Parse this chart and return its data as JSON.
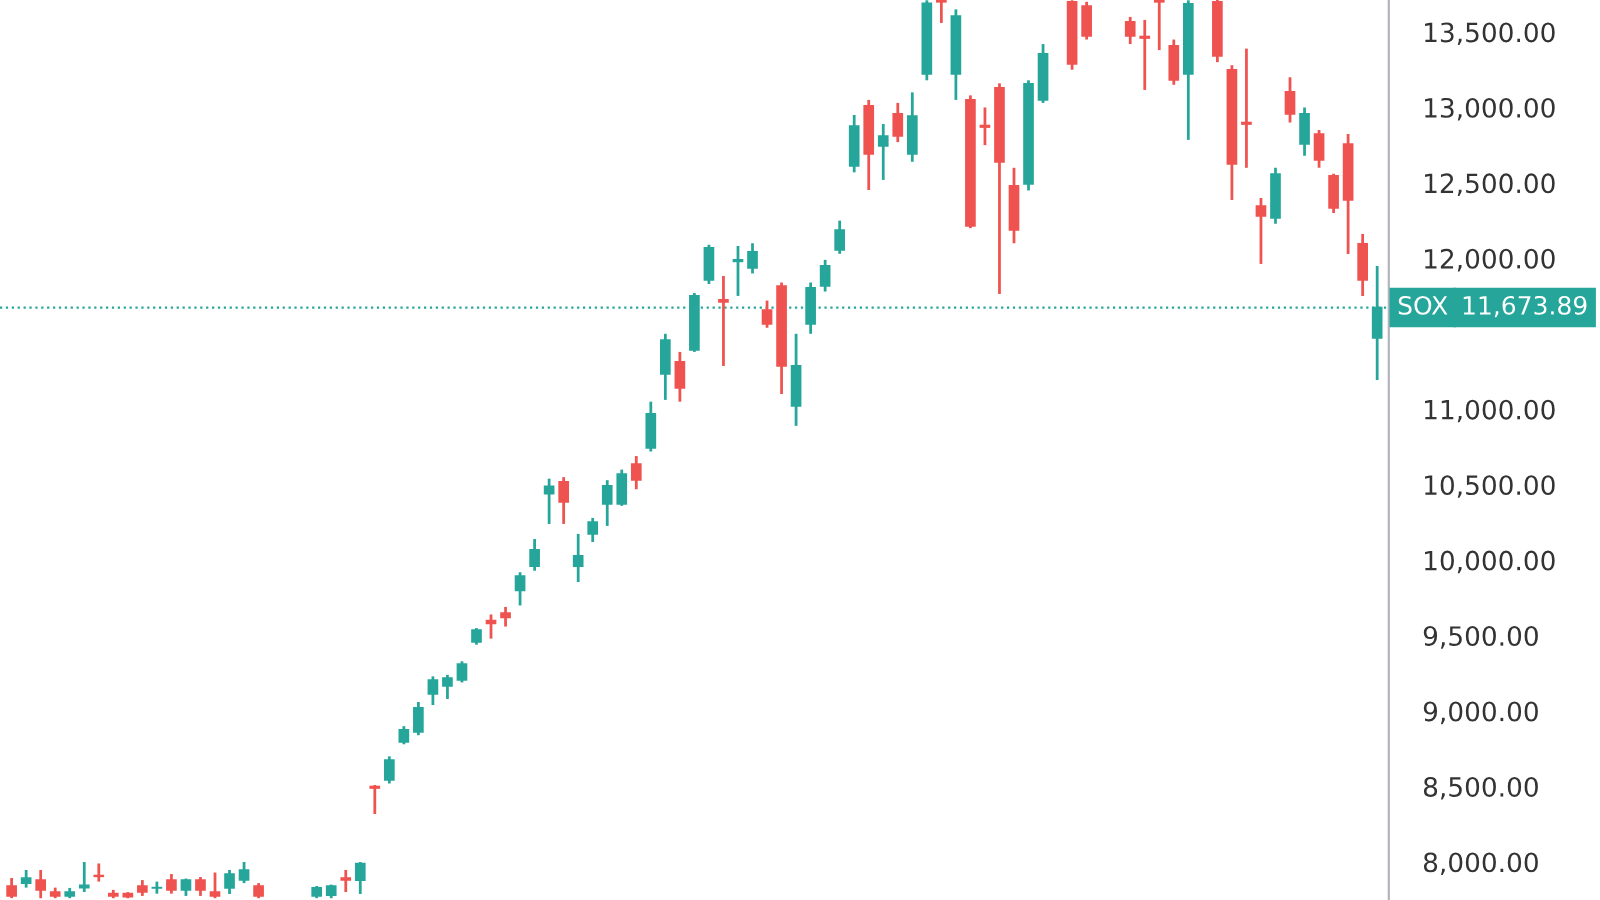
{
  "chart_data": {
    "type": "candlestick",
    "categories": [
      null,
      null,
      null,
      null,
      null,
      null,
      null,
      null,
      null,
      null,
      null,
      null,
      null,
      null,
      null,
      null,
      null,
      null,
      null,
      null,
      null,
      null,
      null,
      null,
      null,
      null,
      null,
      null,
      null,
      null,
      null,
      null,
      null,
      null,
      null,
      null,
      null,
      null,
      null,
      null,
      null,
      null,
      null,
      null,
      null,
      null,
      null,
      null,
      null,
      null,
      null,
      null,
      null,
      null,
      null,
      null,
      null,
      null,
      null,
      null,
      null,
      null,
      null,
      null,
      null,
      null,
      null,
      null,
      null,
      null,
      null,
      null,
      null,
      null,
      null,
      null,
      null,
      null,
      null,
      null,
      null,
      null,
      null,
      null,
      null,
      null,
      null,
      null,
      null,
      null,
      null,
      null,
      null,
      null,
      null
    ],
    "ohlc": [
      [
        7841,
        7894,
        7760,
        7775
      ],
      [
        7860,
        7947,
        7830,
        7894
      ],
      [
        7880,
        7947,
        7760,
        7815
      ],
      [
        7800,
        7830,
        7760,
        7775
      ],
      [
        7775,
        7828,
        7760,
        7801
      ],
      [
        7830,
        8000,
        7801,
        7845
      ],
      [
        7910,
        7990,
        7870,
        7905
      ],
      [
        7790,
        7815,
        7760,
        7775
      ],
      [
        7790,
        7800,
        7760,
        7770
      ],
      [
        7841,
        7880,
        7775,
        7801
      ],
      [
        7828,
        7870,
        7790,
        7830
      ],
      [
        7880,
        7920,
        7790,
        7815
      ],
      [
        7815,
        7890,
        7775,
        7880
      ],
      [
        7880,
        7900,
        7775,
        7815
      ],
      [
        7801,
        7930,
        7760,
        7775
      ],
      [
        7828,
        7947,
        7788,
        7920
      ],
      [
        7881,
        8000,
        7860,
        7947
      ],
      [
        7841,
        7860,
        7760,
        7775
      ],
      null,
      null,
      null,
      [
        7775,
        7841,
        7760,
        7828
      ],
      [
        7780,
        7850,
        7760,
        7841
      ],
      [
        7894,
        7947,
        7801,
        7881
      ],
      [
        7880,
        8000,
        7788,
        7990
      ],
      [
        8500,
        8510,
        8318,
        8490
      ],
      [
        8543,
        8700,
        8520,
        8676
      ],
      [
        8795,
        8900,
        8780,
        8875
      ],
      [
        8862,
        9060,
        8840,
        9021
      ],
      [
        9113,
        9230,
        9040,
        9206
      ],
      [
        9166,
        9240,
        9080,
        9219
      ],
      [
        9206,
        9330,
        9190,
        9312
      ],
      [
        9458,
        9550,
        9440,
        9537
      ],
      [
        9600,
        9640,
        9480,
        9580
      ],
      [
        9650,
        9690,
        9560,
        9620
      ],
      [
        9800,
        9920,
        9700,
        9895
      ],
      [
        9960,
        10140,
        9930,
        10068
      ],
      [
        10440,
        10540,
        10240,
        10490
      ],
      [
        10519,
        10550,
        10240,
        10386
      ],
      [
        9960,
        10174,
        9855,
        10028
      ],
      [
        10174,
        10280,
        10120,
        10253
      ],
      [
        10372,
        10530,
        10227,
        10492
      ],
      [
        10372,
        10600,
        10360,
        10571
      ],
      [
        10637,
        10690,
        10470,
        10531
      ],
      [
        10744,
        11050,
        10720,
        10969
      ],
      [
        11234,
        11500,
        11062,
        11459
      ],
      [
        11314,
        11380,
        11050,
        11141
      ],
      [
        11393,
        11770,
        11380,
        11751
      ],
      [
        11857,
        12090,
        11830,
        12069
      ],
      [
        11725,
        11883,
        11287,
        11712
      ],
      [
        11980,
        12082,
        11751,
        11990
      ],
      [
        11937,
        12100,
        11900,
        12043
      ],
      [
        11658,
        11720,
        11540,
        11565
      ],
      [
        11817,
        11840,
        11101,
        11287
      ],
      [
        11022,
        11500,
        10890,
        11287
      ],
      [
        11565,
        11840,
        11500,
        11804
      ],
      [
        11817,
        11990,
        11780,
        11950
      ],
      [
        12056,
        12250,
        12030,
        12188
      ],
      [
        12612,
        12950,
        12570,
        12877
      ],
      [
        13010,
        13050,
        12453,
        12692
      ],
      [
        12745,
        12890,
        12520,
        12811
      ],
      [
        12957,
        13030,
        12770,
        12811
      ],
      [
        12692,
        13100,
        12640,
        12943
      ],
      [
        13222,
        13710,
        13180,
        13690
      ],
      [
        13710,
        13710,
        13560,
        13700
      ],
      [
        13222,
        13650,
        13050,
        13606
      ],
      [
        13050,
        13080,
        12200,
        12215
      ],
      [
        12880,
        13000,
        12750,
        12870
      ],
      [
        13130,
        13160,
        11764,
        12639
      ],
      [
        12480,
        12600,
        12100,
        12188
      ],
      [
        12493,
        13180,
        12450,
        13156
      ],
      [
        13050,
        13420,
        13030,
        13355
      ],
      null,
      [
        13700,
        13710,
        13250,
        13288
      ],
      [
        13672,
        13700,
        13450,
        13474
      ],
      null,
      null,
      [
        13567,
        13600,
        13420,
        13474
      ],
      [
        13470,
        13580,
        13116,
        13460
      ],
      [
        13710,
        13710,
        13380,
        13700
      ],
      [
        13408,
        13450,
        13150,
        13182
      ],
      [
        13222,
        13710,
        12785,
        13686
      ],
      null,
      [
        13700,
        13712,
        13300,
        13341
      ],
      [
        13249,
        13280,
        12387,
        12626
      ],
      [
        12900,
        13390,
        12600,
        12890
      ],
      [
        12347,
        12400,
        11963,
        12281
      ],
      [
        12268,
        12600,
        12230,
        12559
      ],
      [
        13103,
        13200,
        12900,
        12957
      ],
      [
        12758,
        13000,
        12680,
        12957
      ],
      [
        12824,
        12850,
        12600,
        12652
      ],
      [
        12546,
        12560,
        12300,
        12334
      ],
      [
        12758,
        12824,
        12029,
        12387
      ],
      [
        12096,
        12162,
        11751,
        11857
      ],
      [
        11473,
        11950,
        11194,
        11673.89
      ]
    ],
    "colors": [
      "#ef5350",
      "#26a69a",
      "#ef5350",
      "#ef5350",
      "#26a69a",
      "#26a69a",
      "#ef5350",
      "#ef5350",
      "#ef5350",
      "#ef5350",
      "#26a69a",
      "#ef5350",
      "#26a69a",
      "#ef5350",
      "#ef5350",
      "#26a69a",
      "#26a69a",
      "#ef5350",
      null,
      null,
      null,
      "#26a69a",
      "#26a69a",
      "#ef5350",
      "#26a69a",
      "#ef5350",
      "#26a69a",
      "#26a69a",
      "#26a69a",
      "#26a69a",
      "#26a69a",
      "#26a69a",
      "#26a69a",
      "#ef5350",
      "#ef5350",
      "#26a69a",
      "#26a69a",
      "#26a69a",
      "#ef5350",
      "#26a69a",
      "#26a69a",
      "#26a69a",
      "#26a69a",
      "#ef5350",
      "#26a69a",
      "#26a69a",
      "#ef5350",
      "#26a69a",
      "#26a69a",
      "#ef5350",
      "#26a69a",
      "#26a69a",
      "#ef5350",
      "#ef5350",
      "#26a69a",
      "#26a69a",
      "#26a69a",
      "#26a69a",
      "#26a69a",
      "#ef5350",
      "#26a69a",
      "#ef5350",
      "#26a69a",
      "#26a69a",
      "#ef5350",
      "#26a69a",
      "#ef5350",
      "#ef5350",
      "#ef5350",
      "#ef5350",
      "#26a69a",
      "#26a69a",
      null,
      "#ef5350",
      "#ef5350",
      null,
      null,
      "#ef5350",
      "#ef5350",
      "#ef5350",
      "#ef5350",
      "#26a69a",
      null,
      "#ef5350",
      "#ef5350",
      "#ef5350",
      "#ef5350",
      "#26a69a",
      "#ef5350",
      "#26a69a",
      "#ef5350",
      "#ef5350",
      "#ef5350",
      "#ef5350",
      "#26a69a"
    ],
    "annotations": [
      "11,673.89"
    ],
    "ylim": [
      7748,
      13712
    ],
    "yticks": [
      {
        "value": 8000,
        "label": "8,000.00"
      },
      {
        "value": 8500,
        "label": "8,500.00"
      },
      {
        "value": 9000,
        "label": "9,000.00"
      },
      {
        "value": 9500,
        "label": "9,500.00"
      },
      {
        "value": 10000,
        "label": "10,000.00"
      },
      {
        "value": 10500,
        "label": "10,500.00"
      },
      {
        "value": 11000,
        "label": "11,000.00"
      },
      {
        "value": 12000,
        "label": "12,000.00"
      },
      {
        "value": 12500,
        "label": "12,500.00"
      },
      {
        "value": 13000,
        "label": "13,000.00"
      },
      {
        "value": 13500,
        "label": "13,500.00"
      }
    ],
    "tick_labels": "y",
    "ref_lines": [
      {
        "axis": "y",
        "value": 11673.89,
        "label": "SOX",
        "color": "#26a69a",
        "line_style": "dotted"
      }
    ]
  }
}
